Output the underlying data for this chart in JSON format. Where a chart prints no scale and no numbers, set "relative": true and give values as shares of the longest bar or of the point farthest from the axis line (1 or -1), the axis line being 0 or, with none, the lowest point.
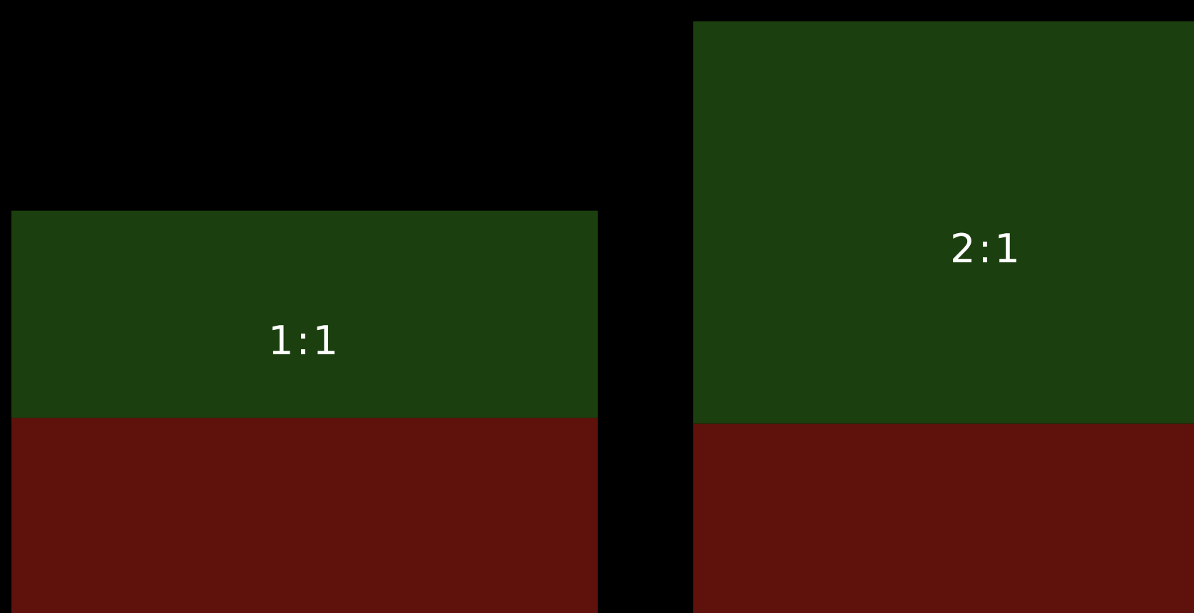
{
  "chart_data": {
    "type": "bar",
    "relative": true,
    "stacked": true,
    "categories": [
      null,
      null
    ],
    "series": [
      {
        "color": "#5f120b",
        "values": [
          0.33,
          0.32
        ]
      },
      {
        "color": "#1b3f0e",
        "values": [
          0.35,
          0.68
        ]
      }
    ],
    "annotations": [
      "1:1",
      "2:1"
    ]
  }
}
